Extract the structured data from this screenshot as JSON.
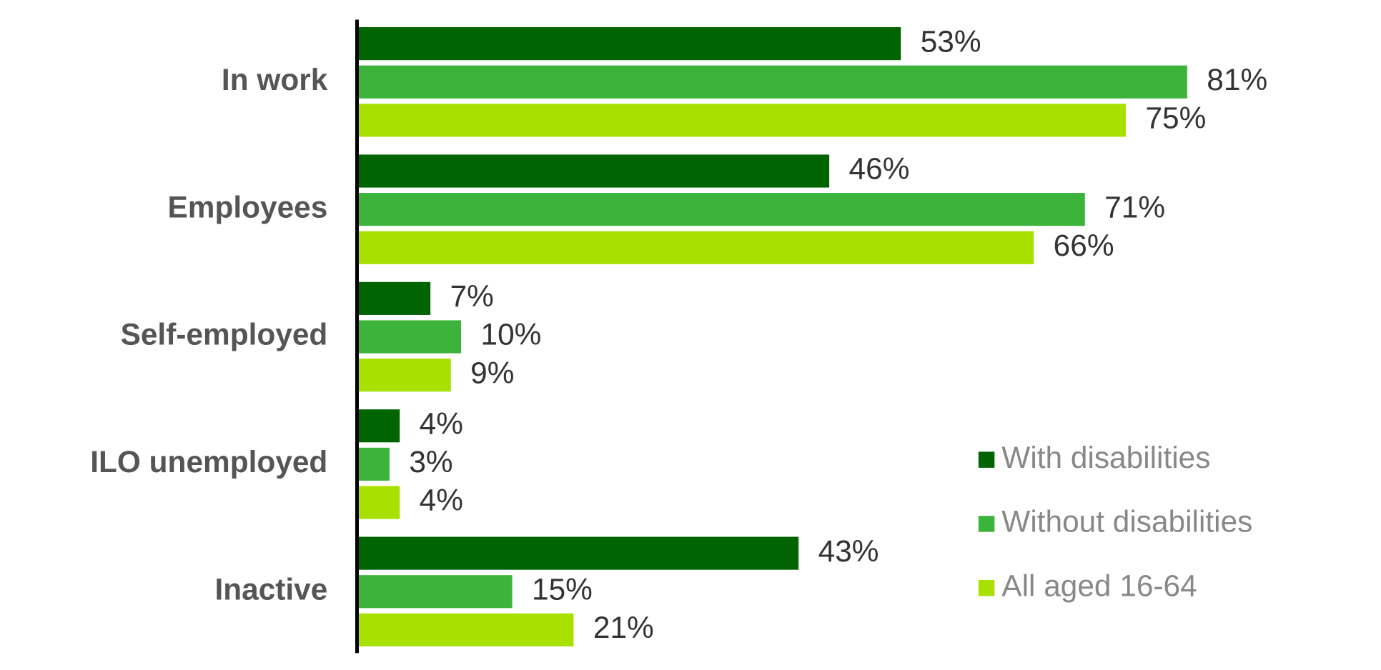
{
  "chart_data": {
    "type": "hbar",
    "categories": [
      "In work",
      "Employees",
      "Self-employed",
      "ILO unemployed",
      "Inactive"
    ],
    "series": [
      {
        "name": "With disabilities",
        "color": "#006400",
        "values": [
          53,
          46,
          7,
          4,
          43
        ],
        "value_labels": [
          "53%",
          "46%",
          "7%",
          "4%",
          "43%"
        ]
      },
      {
        "name": "Without disabilities",
        "color": "#3cb43c",
        "values": [
          81,
          71,
          10,
          3,
          15
        ],
        "value_labels": [
          "81%",
          "71%",
          "10%",
          "3%",
          "15%"
        ]
      },
      {
        "name": "All aged 16-64",
        "color": "#a8e000",
        "values": [
          75,
          66,
          9,
          4,
          21
        ],
        "value_labels": [
          "75%",
          "66%",
          "9%",
          "4%",
          "21%"
        ]
      }
    ]
  }
}
